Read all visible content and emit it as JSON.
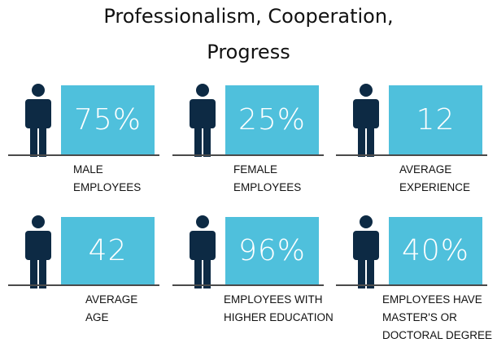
{
  "title_lines": [
    "Professionalism, Cooperation,",
    "Progress"
  ],
  "items": [
    {
      "value": "75%",
      "label_lines": [
        "MALE",
        "EMPLOYEES"
      ]
    },
    {
      "value": "25%",
      "label_lines": [
        "FEMALE",
        "EMPLOYEES"
      ]
    },
    {
      "value": "12",
      "label_lines": [
        "AVERAGE",
        "EXPERIENCE"
      ]
    },
    {
      "value": "42",
      "label_lines": [
        "AVERAGE",
        "AGE"
      ]
    },
    {
      "value": "96%",
      "label_lines": [
        "EMPLOYEES WITH",
        "HIGHER EDUCATION"
      ]
    },
    {
      "value": "40%",
      "label_lines": [
        "EMPLOYEES HAVE",
        "MASTER'S OR",
        "DOCTORAL DEGREE"
      ]
    }
  ]
}
